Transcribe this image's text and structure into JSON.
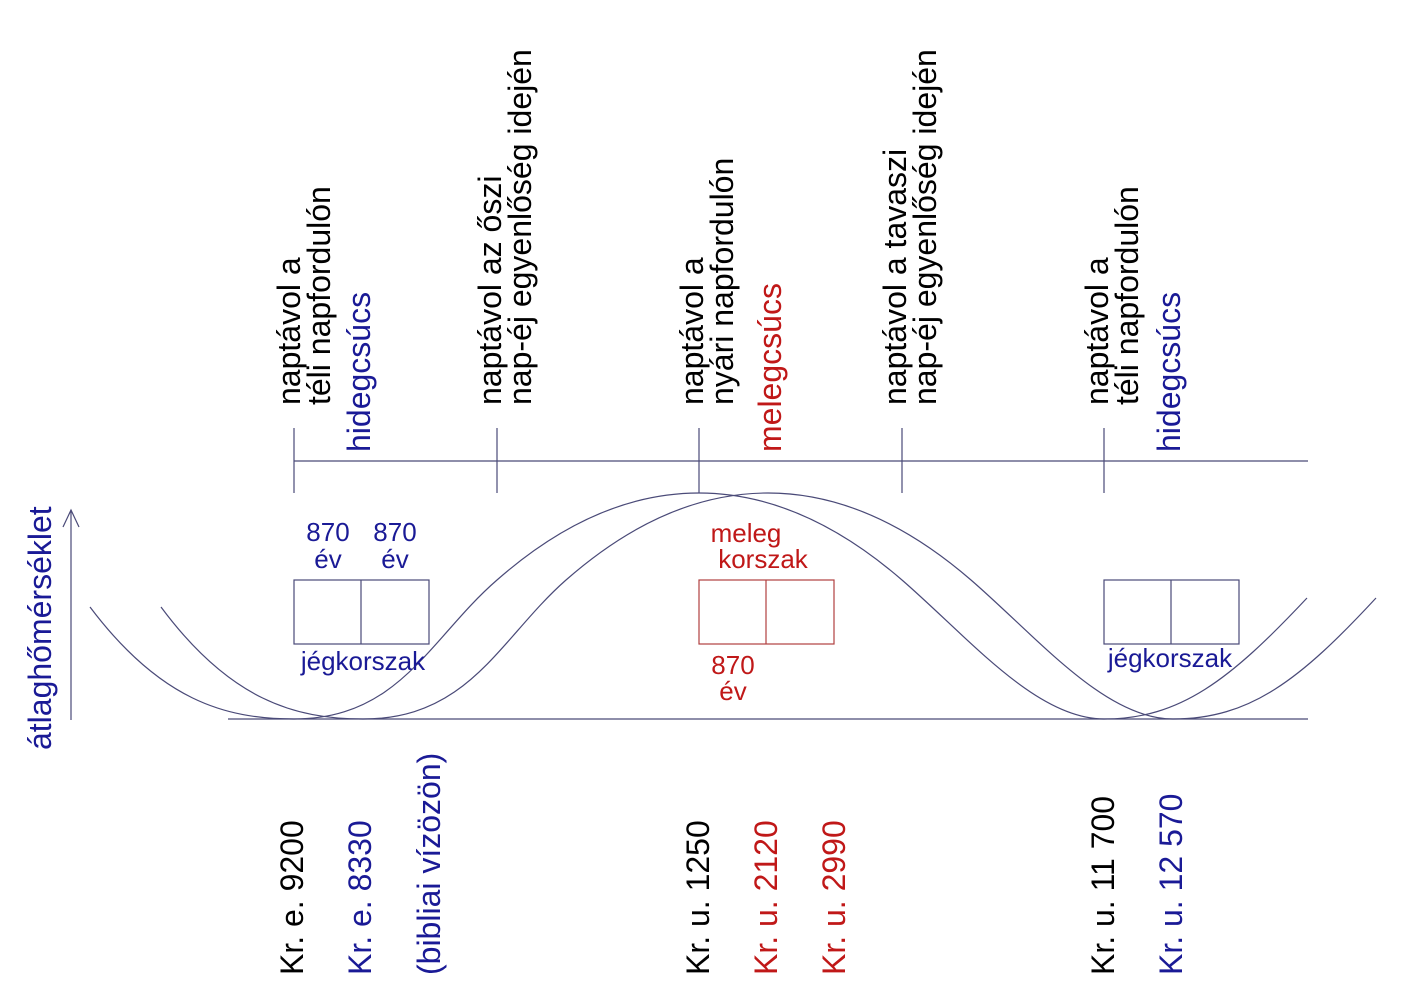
{
  "colors": {
    "black": "#000000",
    "blue": "#1a1a96",
    "red": "#c01818",
    "line": "#4a4a78"
  },
  "top_labels": {
    "winter_1": {
      "line1": "naptávol a",
      "line2": "téli napfordulón"
    },
    "autumn": {
      "line1": "naptávol az őszi",
      "line2": "nap-éj egyenlőség idején"
    },
    "summer": {
      "line1": "naptávol a",
      "line2": "nyári napfordulón"
    },
    "spring": {
      "line1": "naptávol a tavaszi",
      "line2": "nap-éj egyenlőség idején"
    },
    "winter_2": {
      "line1": "naptávol a",
      "line2": "téli napfordulón"
    }
  },
  "peak_labels": {
    "cold_1": "hidegcsúcs",
    "warm": "melegcsúcs",
    "cold_2": "hidegcsúcs"
  },
  "axis_label": "átlaghőmérséklet",
  "box_labels": {
    "years_a_num": "870",
    "years_a_unit": "év",
    "years_b_num": "870",
    "years_b_unit": "év",
    "ice_age_1": "jégkorszak",
    "warm_period_1": "meleg",
    "warm_period_2": "korszak",
    "years_c_num": "870",
    "years_c_unit": "év",
    "ice_age_2": "jégkorszak"
  },
  "bottom_labels": {
    "d1": "Kr. e. 9200",
    "d2": "Kr. e. 8330",
    "d3": "(bibliai vízözön)",
    "d4": "Kr. u. 1250",
    "d5": "Kr. u. 2120",
    "d6": "Kr. u. 2990",
    "d7": "Kr. u. 11 700",
    "d8": "Kr. u. 12 570"
  }
}
